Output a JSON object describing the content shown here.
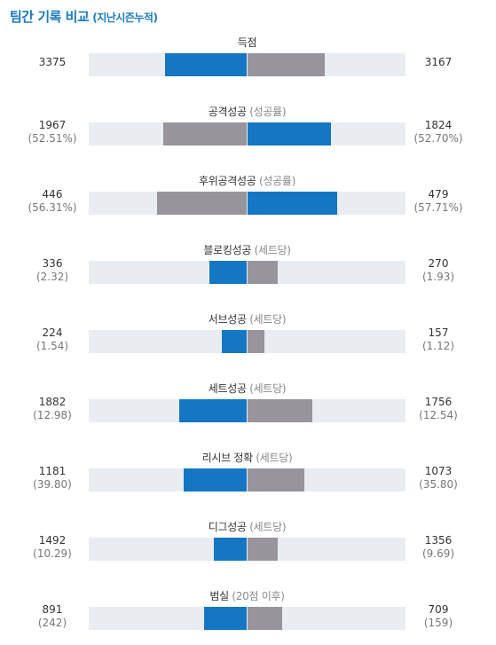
{
  "header": {
    "title": "팀간 기록 비교",
    "subtitle": "(지난시즌누적)"
  },
  "colors": {
    "title": "#1a7ac4",
    "left_bar": "#1576c4",
    "right_bar": "#97959b",
    "track": "#e9edf1"
  },
  "stats": [
    {
      "label": "득점",
      "note": "",
      "left": {
        "value": "3375",
        "sub": ""
      },
      "right": {
        "value": "3167",
        "sub": ""
      },
      "left_bar_fraction": 0.52,
      "right_bar_fraction": 0.49,
      "left_color": "#1576c4",
      "right_color": "#97959b"
    },
    {
      "label": "공격성공",
      "note": "(성공률)",
      "left": {
        "value": "1967",
        "sub": "(52.51%)"
      },
      "right": {
        "value": "1824",
        "sub": "(52.70%)"
      },
      "left_bar_fraction": 0.53,
      "right_bar_fraction": 0.53,
      "left_color": "#97959b",
      "right_color": "#1576c4"
    },
    {
      "label": "후위공격성공",
      "note": "(성공률)",
      "left": {
        "value": "446",
        "sub": "(56.31%)"
      },
      "right": {
        "value": "479",
        "sub": "(57.71%)"
      },
      "left_bar_fraction": 0.57,
      "right_bar_fraction": 0.57,
      "left_color": "#97959b",
      "right_color": "#1576c4"
    },
    {
      "label": "블로킹성공",
      "note": "(세트당)",
      "left": {
        "value": "336",
        "sub": "(2.32)"
      },
      "right": {
        "value": "270",
        "sub": "(1.93)"
      },
      "left_bar_fraction": 0.24,
      "right_bar_fraction": 0.19,
      "left_color": "#1576c4",
      "right_color": "#97959b"
    },
    {
      "label": "서브성공",
      "note": "(세트당)",
      "left": {
        "value": "224",
        "sub": "(1.54)"
      },
      "right": {
        "value": "157",
        "sub": "(1.12)"
      },
      "left_bar_fraction": 0.16,
      "right_bar_fraction": 0.11,
      "left_color": "#1576c4",
      "right_color": "#97959b"
    },
    {
      "label": "세트성공",
      "note": "(세트당)",
      "left": {
        "value": "1882",
        "sub": "(12.98)"
      },
      "right": {
        "value": "1756",
        "sub": "(12.54)"
      },
      "left_bar_fraction": 0.43,
      "right_bar_fraction": 0.41,
      "left_color": "#1576c4",
      "right_color": "#97959b"
    },
    {
      "label": "리시브 정확",
      "note": "(세트당)",
      "left": {
        "value": "1181",
        "sub": "(39.80)"
      },
      "right": {
        "value": "1073",
        "sub": "(35.80)"
      },
      "left_bar_fraction": 0.4,
      "right_bar_fraction": 0.36,
      "left_color": "#1576c4",
      "right_color": "#97959b"
    },
    {
      "label": "디그성공",
      "note": "(세트당)",
      "left": {
        "value": "1492",
        "sub": "(10.29)"
      },
      "right": {
        "value": "1356",
        "sub": "(9.69)"
      },
      "left_bar_fraction": 0.21,
      "right_bar_fraction": 0.19,
      "left_color": "#1576c4",
      "right_color": "#97959b"
    },
    {
      "label": "범실",
      "note": "(20점 이후)",
      "left": {
        "value": "891",
        "sub": "(242)"
      },
      "right": {
        "value": "709",
        "sub": "(159)"
      },
      "left_bar_fraction": 0.27,
      "right_bar_fraction": 0.22,
      "left_color": "#1576c4",
      "right_color": "#97959b"
    }
  ]
}
